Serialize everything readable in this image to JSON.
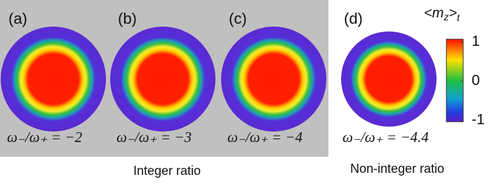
{
  "panels": [
    {
      "letter": "(a)",
      "ratio": "ω₋/ω₊ = −2"
    },
    {
      "letter": "(b)",
      "ratio": "ω₋/ω₊ = −3"
    },
    {
      "letter": "(c)",
      "ratio": "ω₋/ω₊ = −4"
    },
    {
      "letter": "(d)",
      "ratio": "ω₋/ω₊ = −4.4"
    }
  ],
  "groups": {
    "integer": "Integer ratio",
    "non_integer": "Non-integer ratio"
  },
  "colorbar": {
    "label": {
      "open": "<m",
      "sub": "z",
      "close": ">",
      "sub2": "t"
    },
    "lim": [
      -1,
      1
    ],
    "ticks": [
      1,
      0,
      -1
    ]
  }
}
